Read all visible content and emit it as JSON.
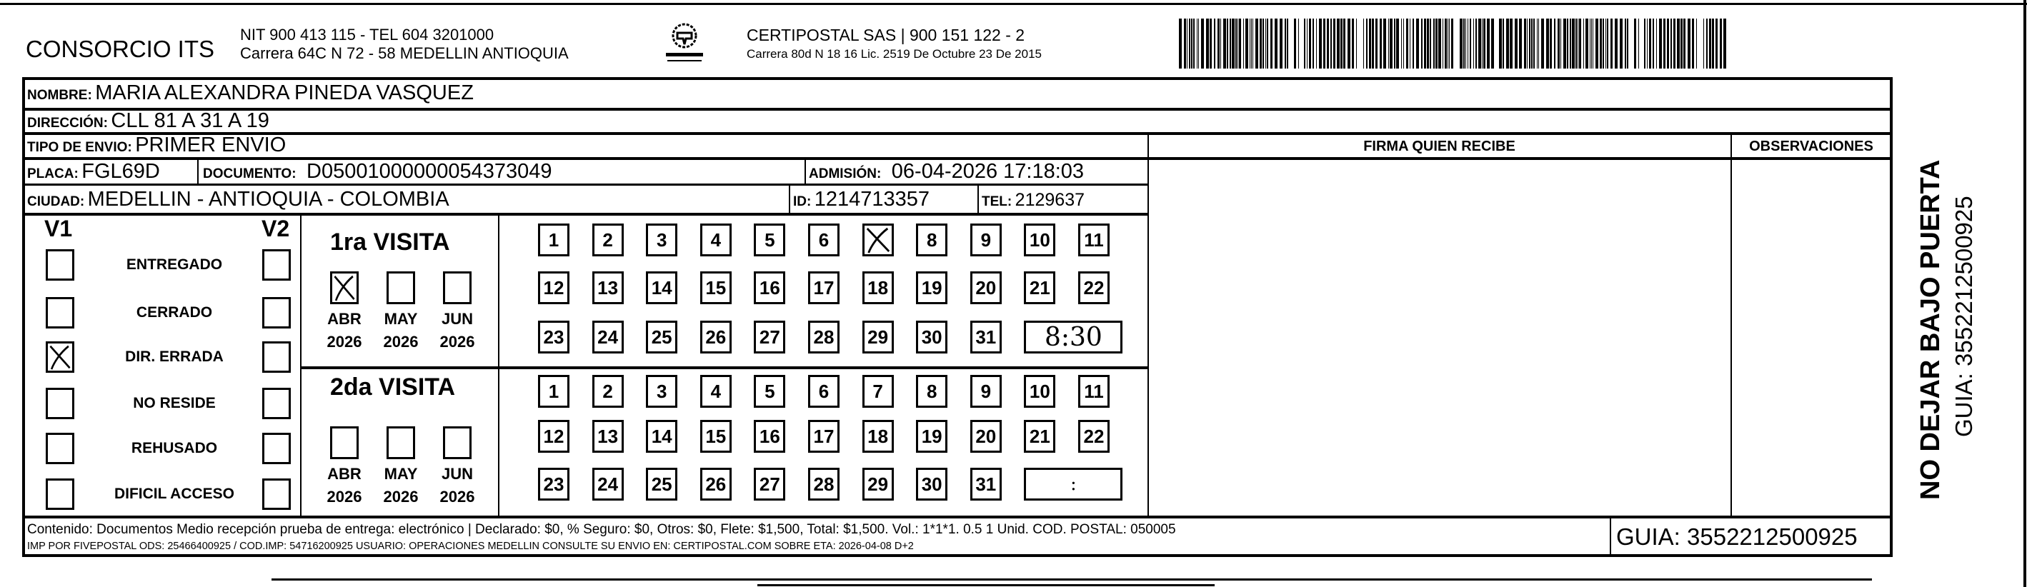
{
  "header": {
    "company": "CONSORCIO ITS",
    "company_line1": "NIT 900 413 115 - TEL 604 3201000",
    "company_line2": "Carrera 64C N 72 - 58 MEDELLIN ANTIOQUIA",
    "logo_text": "CERTIPOSTAL",
    "carrier_line1": "CERTIPOSTAL SAS | 900 151 122 - 2",
    "carrier_line2": "Carrera 80d N 18 16  Lic. 2519 De Octubre 23 De 2015"
  },
  "fields": {
    "nombre_label": "NOMBRE:",
    "nombre": "MARIA ALEXANDRA PINEDA VASQUEZ",
    "direccion_label": "DIRECCIÓN:",
    "direccion": "CLL 81 A 31 A 19",
    "tipo_label": "TIPO DE ENVIO:",
    "tipo": "PRIMER ENVIO",
    "placa_label": "PLACA:",
    "placa": "FGL69D",
    "documento_label": "DOCUMENTO:",
    "documento": "D05001000000054373049",
    "admision_label": "ADMISIÓN:",
    "admision": "06-04-2026 17:18:03",
    "ciudad_label": "CIUDAD:",
    "ciudad": "MEDELLIN - ANTIOQUIA - COLOMBIA",
    "id_label": "ID:",
    "id": "1214713357",
    "tel_label": "TEL:",
    "tel": "2129637"
  },
  "columns": {
    "firma": "FIRMA QUIEN RECIBE",
    "observaciones": "OBSERVACIONES"
  },
  "status": {
    "v1_label": "V1",
    "v2_label": "V2",
    "items": [
      {
        "label": "ENTREGADO",
        "v1": false,
        "v2": false
      },
      {
        "label": "CERRADO",
        "v1": false,
        "v2": false
      },
      {
        "label": "DIR. ERRADA",
        "v1": true,
        "v2": false
      },
      {
        "label": "NO RESIDE",
        "v1": false,
        "v2": false
      },
      {
        "label": "REHUSADO",
        "v1": false,
        "v2": false
      },
      {
        "label": "DIFICIL ACCESO",
        "v1": false,
        "v2": false
      }
    ]
  },
  "visits": [
    {
      "title": "1ra VISITA",
      "months": [
        {
          "m": "ABR",
          "y": "2026",
          "checked": true
        },
        {
          "m": "MAY",
          "y": "2026",
          "checked": false
        },
        {
          "m": "JUN",
          "y": "2026",
          "checked": false
        }
      ],
      "checked_day": "7",
      "time": "8:30"
    },
    {
      "title": "2da VISITA",
      "months": [
        {
          "m": "ABR",
          "y": "2026",
          "checked": false
        },
        {
          "m": "MAY",
          "y": "2026",
          "checked": false
        },
        {
          "m": "JUN",
          "y": "2026",
          "checked": false
        }
      ],
      "checked_day": "",
      "time": ":"
    }
  ],
  "days": [
    "1",
    "2",
    "3",
    "4",
    "5",
    "6",
    "7",
    "8",
    "9",
    "10",
    "11",
    "12",
    "13",
    "14",
    "15",
    "16",
    "17",
    "18",
    "19",
    "20",
    "21",
    "22",
    "23",
    "24",
    "25",
    "26",
    "27",
    "28",
    "29",
    "30",
    "31"
  ],
  "footer": {
    "line1": "Contenido: Documentos Medio recepción prueba de entrega: electrónico | Declarado: $0, % Seguro: $0, Otros: $0, Flete: $1,500, Total: $1,500. Vol.: 1*1*1. 0.5  1 Unid. COD. POSTAL: 050005",
    "line2": "IMP POR FIVEPOSTAL ODS: 25466400925 / COD.IMP: 54716200925 USUARIO: OPERACIONES MEDELLIN CONSULTE SU ENVIO EN: CERTIPOSTAL.COM SOBRE ETA: 2026-04-08 D+2",
    "guia": "GUIA: 3552212500925"
  },
  "side": {
    "warning": "NO DEJAR BAJO PUERTA",
    "guia": "GUIA: 3552212500925"
  }
}
